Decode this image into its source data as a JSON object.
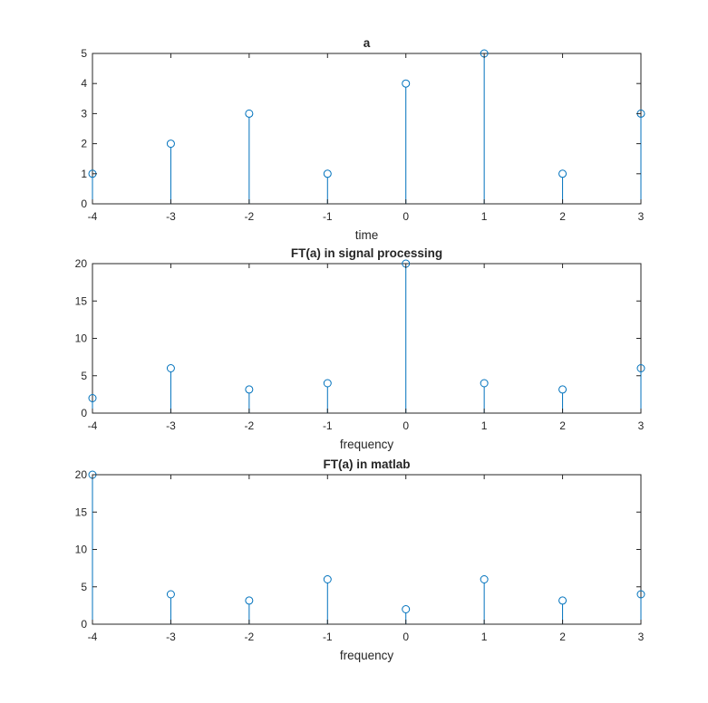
{
  "chart_data": [
    {
      "type": "stem",
      "title": "a",
      "xlabel": "time",
      "ylabel": "",
      "x": [
        -4,
        -3,
        -2,
        -1,
        0,
        1,
        2,
        3
      ],
      "y": [
        1,
        2,
        3,
        1,
        4,
        5,
        1,
        3
      ],
      "xlim": [
        -4,
        3
      ],
      "ylim": [
        0,
        5
      ],
      "xticks": [
        -4,
        -3,
        -2,
        -1,
        0,
        1,
        2,
        3
      ],
      "yticks": [
        0,
        1,
        2,
        3,
        4,
        5
      ],
      "grid": false,
      "color": "#0072BD"
    },
    {
      "type": "stem",
      "title": "FT(a) in signal processing",
      "xlabel": "frequency",
      "ylabel": "",
      "x": [
        -4,
        -3,
        -2,
        -1,
        0,
        1,
        2,
        3
      ],
      "y": [
        2,
        6,
        3.16,
        4,
        20,
        4,
        3.16,
        6
      ],
      "xlim": [
        -4,
        3
      ],
      "ylim": [
        0,
        20
      ],
      "xticks": [
        -4,
        -3,
        -2,
        -1,
        0,
        1,
        2,
        3
      ],
      "yticks": [
        0,
        5,
        10,
        15,
        20
      ],
      "grid": false,
      "color": "#0072BD"
    },
    {
      "type": "stem",
      "title": "FT(a) in matlab",
      "xlabel": "frequency",
      "ylabel": "",
      "x": [
        -4,
        -3,
        -2,
        -1,
        0,
        1,
        2,
        3
      ],
      "y": [
        20,
        4,
        3.16,
        6,
        2,
        6,
        3.16,
        4
      ],
      "xlim": [
        -4,
        3
      ],
      "ylim": [
        0,
        20
      ],
      "xticks": [
        -4,
        -3,
        -2,
        -1,
        0,
        1,
        2,
        3
      ],
      "yticks": [
        0,
        5,
        10,
        15,
        20
      ],
      "grid": false,
      "color": "#0072BD"
    }
  ]
}
